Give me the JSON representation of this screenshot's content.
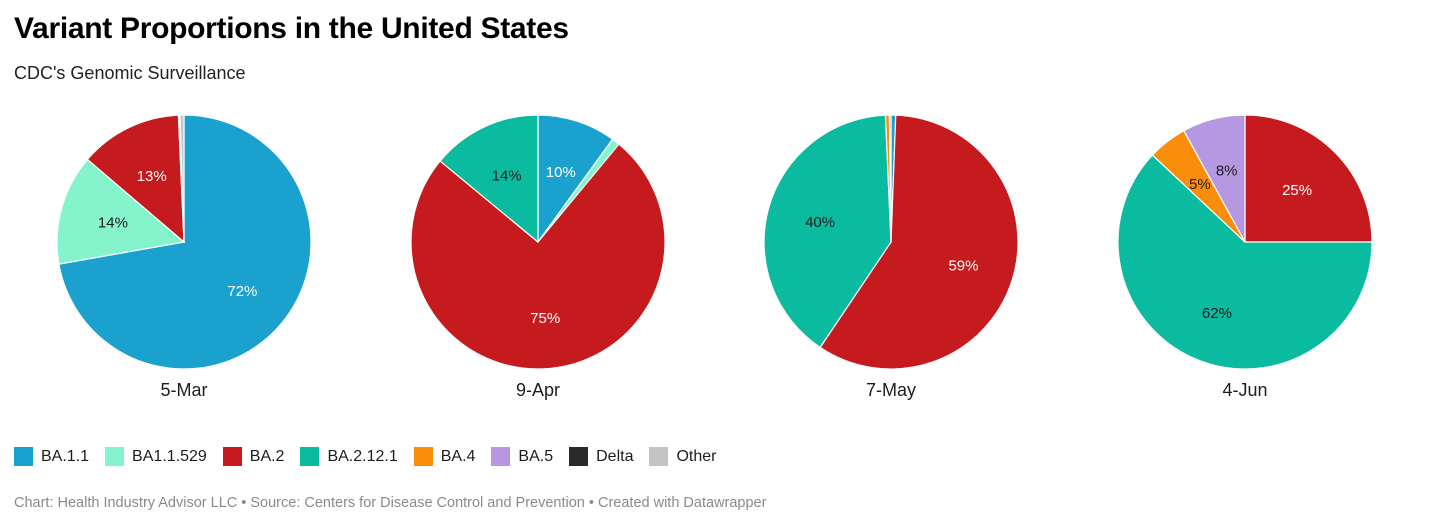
{
  "header": {
    "title": "Variant Proportions in the United States",
    "subtitle": "CDC's Genomic Surveillance"
  },
  "colors": {
    "BA.1.1": "#1aa1cd",
    "BA1.1.529": "#85f4cd",
    "BA.2": "#c61b1e",
    "BA.2.12.1": "#0abb9f",
    "BA.4": "#fa8d0a",
    "BA.5": "#b597e2",
    "Delta": "#2a2a2a",
    "Other": "#c4c4c4"
  },
  "chart_data": [
    {
      "type": "pie",
      "title": "5-Mar",
      "slices": [
        {
          "name": "BA.1.1",
          "value": 72,
          "label": "72%"
        },
        {
          "name": "BA1.1.529",
          "value": 14,
          "label": "14%"
        },
        {
          "name": "BA.2",
          "value": 13,
          "label": "13%"
        },
        {
          "name": "BA.2.12.1",
          "value": 0.1,
          "label": ""
        },
        {
          "name": "BA.4",
          "value": 0.1,
          "label": ""
        },
        {
          "name": "Other",
          "value": 0.5,
          "label": ""
        }
      ]
    },
    {
      "type": "pie",
      "title": "9-Apr",
      "slices": [
        {
          "name": "BA.1.1",
          "value": 10,
          "label": "10%"
        },
        {
          "name": "BA1.1.529",
          "value": 1,
          "label": ""
        },
        {
          "name": "BA.2",
          "value": 75,
          "label": "75%"
        },
        {
          "name": "BA.2.12.1",
          "value": 14,
          "label": "14%"
        }
      ]
    },
    {
      "type": "pie",
      "title": "7-May",
      "slices": [
        {
          "name": "BA.1.1",
          "value": 0.6,
          "label": ""
        },
        {
          "name": "BA.2",
          "value": 59,
          "label": "59%"
        },
        {
          "name": "BA.2.12.1",
          "value": 40,
          "label": "40%"
        },
        {
          "name": "BA.4",
          "value": 0.5,
          "label": ""
        },
        {
          "name": "BA.5",
          "value": 0.2,
          "label": ""
        }
      ]
    },
    {
      "type": "pie",
      "title": "4-Jun",
      "slices": [
        {
          "name": "BA.2",
          "value": 25,
          "label": "25%"
        },
        {
          "name": "BA.2.12.1",
          "value": 62,
          "label": "62%"
        },
        {
          "name": "BA.4",
          "value": 5,
          "label": "5%"
        },
        {
          "name": "BA.5",
          "value": 8,
          "label": "8%"
        }
      ]
    }
  ],
  "legend": [
    {
      "label": "BA.1.1",
      "color": "#1aa1cd"
    },
    {
      "label": "BA1.1.529",
      "color": "#85f4cd"
    },
    {
      "label": "BA.2",
      "color": "#c61b1e"
    },
    {
      "label": "BA.2.12.1",
      "color": "#0abb9f"
    },
    {
      "label": "BA.4",
      "color": "#fa8d0a"
    },
    {
      "label": "BA.5",
      "color": "#b597e2"
    },
    {
      "label": "Delta",
      "color": "#2a2a2a"
    },
    {
      "label": "Other",
      "color": "#c4c4c4"
    }
  ],
  "footer": {
    "text": "Chart: Health Industry Advisor LLC • Source: Centers for Disease Control and Prevention • Created with Datawrapper"
  }
}
